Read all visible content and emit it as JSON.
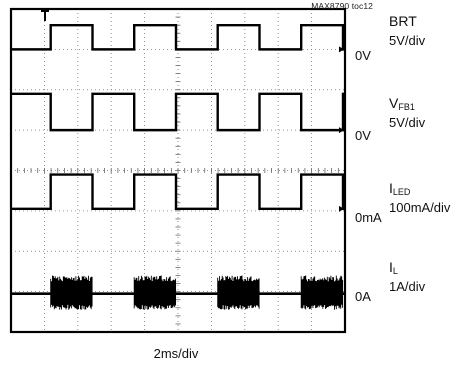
{
  "figure_tag": "MAX8790 toc12",
  "chart_data": {
    "type": "line",
    "title": "",
    "grid": true,
    "x_scale_label": "2ms/div",
    "x_divisions": 10,
    "y_divisions": 8,
    "period_ms": 5.0,
    "duty_high_fraction": 0.5,
    "channels": [
      {
        "id": "brt",
        "name_main": "BRT",
        "name_sub": "",
        "scale": "5V/div",
        "zero_label": "0V",
        "shape": "square",
        "zero_div": 7.0,
        "high_div": 7.6,
        "low_div": 7.0
      },
      {
        "id": "vfb1",
        "name_main": "V",
        "name_sub": "FB1",
        "scale": "5V/div",
        "zero_label": "0V",
        "shape": "square-inverted",
        "zero_div": 5.0,
        "high_div": 5.9,
        "low_div": 5.0
      },
      {
        "id": "iled",
        "name_main": "I",
        "name_sub": "LED",
        "scale": "100mA/div",
        "zero_label": "0mA",
        "shape": "square",
        "zero_div": 3.05,
        "high_div": 3.9,
        "low_div": 3.05
      },
      {
        "id": "il",
        "name_main": "I",
        "name_sub": "L",
        "scale": "1A/div",
        "zero_label": "0A",
        "shape": "burst",
        "zero_div": 0.95,
        "high_div": 1.4,
        "low_div": 0.55
      }
    ]
  }
}
